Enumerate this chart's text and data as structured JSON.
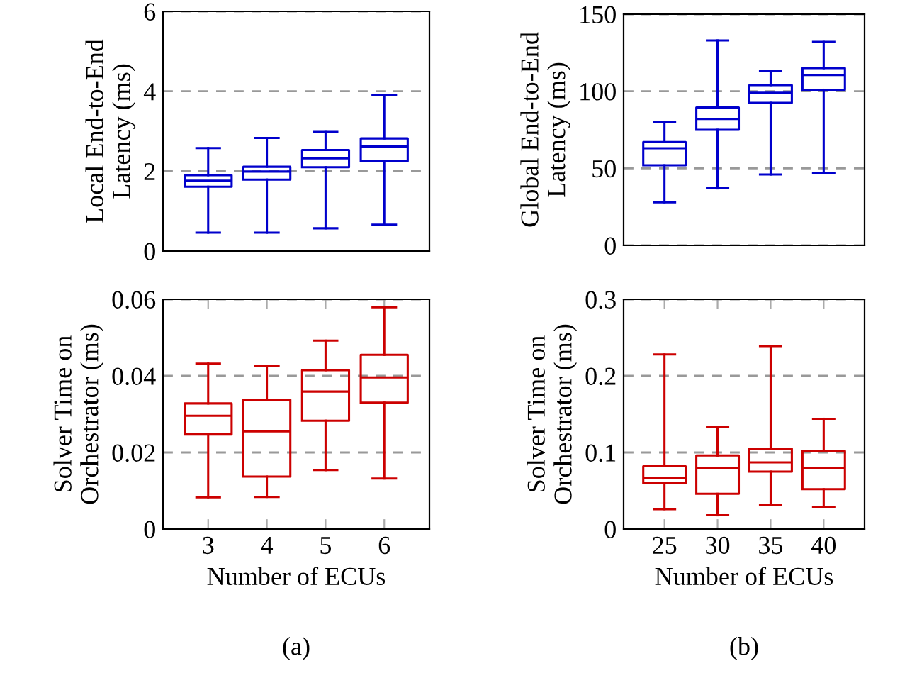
{
  "chart_data": [
    {
      "type": "box",
      "ylabel": "Local End-to-End\nLatency (ms)",
      "categories": [
        "3",
        "4",
        "5",
        "6"
      ],
      "ylim": [
        0,
        6
      ],
      "yticks": [
        0,
        2,
        4,
        6
      ],
      "grid": "y",
      "tick_labels": "y",
      "color": "#0000cc",
      "boxes": [
        {
          "low": 0.46,
          "q1": 1.61,
          "median": 1.76,
          "q3": 1.9,
          "high": 2.58
        },
        {
          "low": 0.46,
          "q1": 1.79,
          "median": 1.99,
          "q3": 2.11,
          "high": 2.83
        },
        {
          "low": 0.57,
          "q1": 2.1,
          "median": 2.32,
          "q3": 2.53,
          "high": 2.98
        },
        {
          "low": 0.66,
          "q1": 2.25,
          "median": 2.62,
          "q3": 2.82,
          "high": 3.9
        }
      ]
    },
    {
      "type": "box",
      "ylabel": "Global End-to-End\nLatency (ms)",
      "categories": [
        "25",
        "30",
        "35",
        "40"
      ],
      "ylim": [
        0,
        150
      ],
      "yticks": [
        0,
        50,
        100,
        150
      ],
      "grid": "y",
      "tick_labels": "y",
      "color": "#0000cc",
      "boxes": [
        {
          "low": 28,
          "q1": 52,
          "median": 63,
          "q3": 67,
          "high": 80
        },
        {
          "low": 37,
          "q1": 75,
          "median": 82,
          "q3": 89.5,
          "high": 133
        },
        {
          "low": 46,
          "q1": 92.5,
          "median": 99,
          "q3": 104,
          "high": 113
        },
        {
          "low": 47,
          "q1": 101,
          "median": 110.5,
          "q3": 115,
          "high": 132
        }
      ]
    },
    {
      "type": "box",
      "ylabel": "Solver Time on\nOrchestrator (ms)",
      "xlabel": "Number of ECUs",
      "categories": [
        "3",
        "4",
        "5",
        "6"
      ],
      "ylim": [
        0,
        0.06
      ],
      "yticks": [
        0,
        0.02,
        0.04,
        0.06
      ],
      "grid": "y",
      "color": "#cc0000",
      "annotations": [
        "(a)"
      ],
      "boxes": [
        {
          "low": 0.0083,
          "q1": 0.0247,
          "median": 0.0296,
          "q3": 0.0328,
          "high": 0.0432
        },
        {
          "low": 0.0084,
          "q1": 0.0137,
          "median": 0.0255,
          "q3": 0.0338,
          "high": 0.0426
        },
        {
          "low": 0.0154,
          "q1": 0.0283,
          "median": 0.0359,
          "q3": 0.0415,
          "high": 0.0492
        },
        {
          "low": 0.0132,
          "q1": 0.033,
          "median": 0.0396,
          "q3": 0.0455,
          "high": 0.0579
        }
      ]
    },
    {
      "type": "box",
      "ylabel": "Solver Time on\nOrchestrator (ms)",
      "xlabel": "Number of ECUs",
      "categories": [
        "25",
        "30",
        "35",
        "40"
      ],
      "ylim": [
        0,
        0.3
      ],
      "yticks": [
        0,
        0.1,
        0.2,
        0.3
      ],
      "grid": "y",
      "color": "#cc0000",
      "annotations": [
        "(b)"
      ],
      "boxes": [
        {
          "low": 0.026,
          "q1": 0.06,
          "median": 0.067,
          "q3": 0.082,
          "high": 0.228
        },
        {
          "low": 0.018,
          "q1": 0.046,
          "median": 0.08,
          "q3": 0.096,
          "high": 0.133
        },
        {
          "low": 0.032,
          "q1": 0.075,
          "median": 0.087,
          "q3": 0.105,
          "high": 0.239
        },
        {
          "low": 0.029,
          "q1": 0.052,
          "median": 0.08,
          "q3": 0.102,
          "high": 0.144
        }
      ]
    }
  ]
}
